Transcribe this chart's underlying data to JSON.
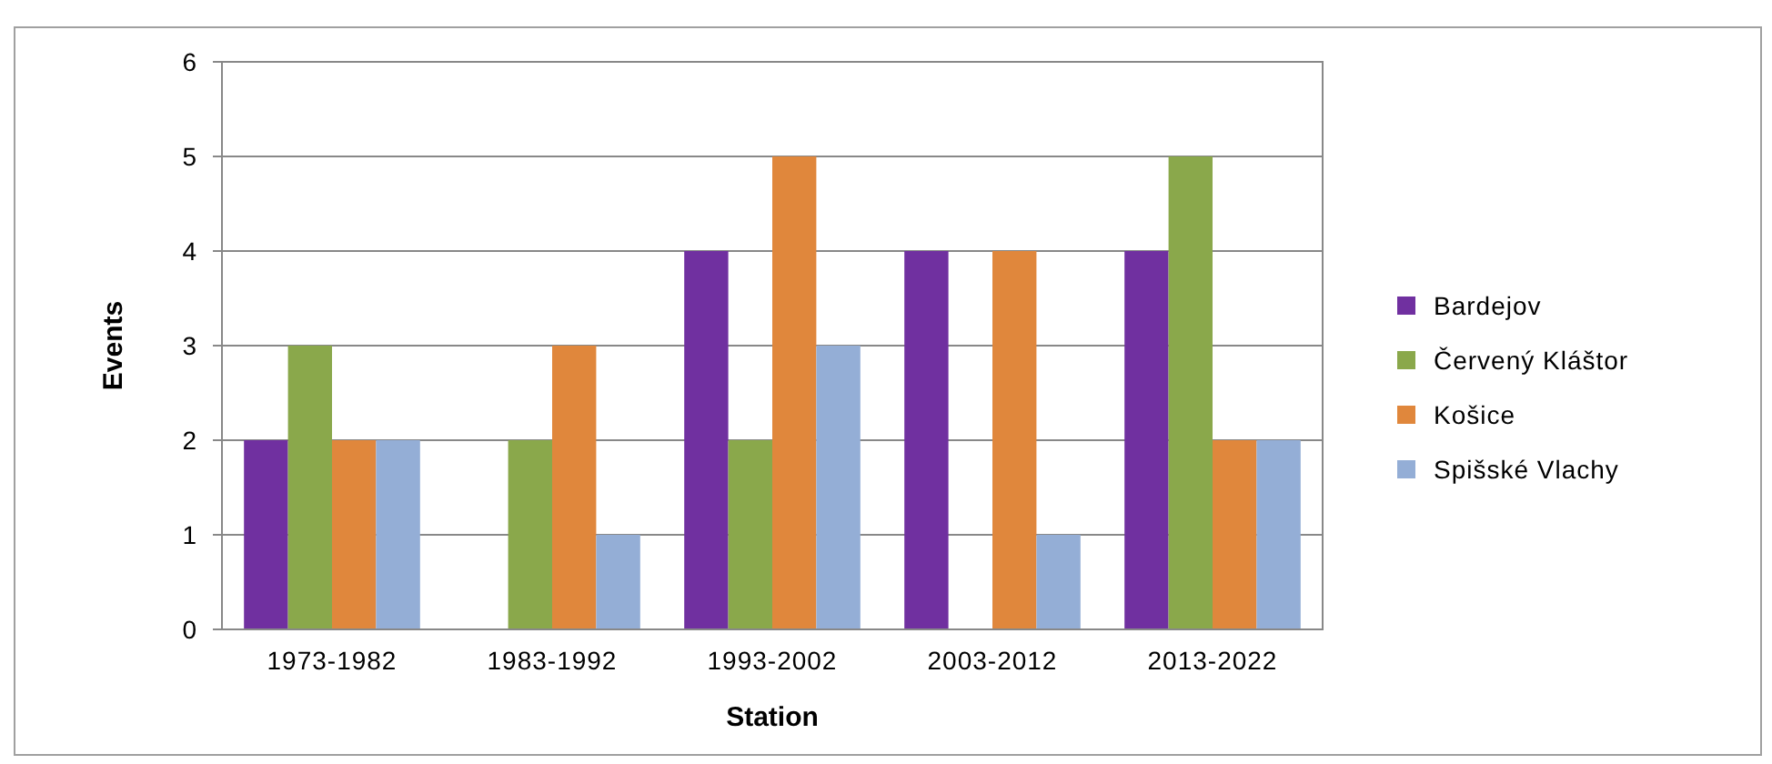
{
  "chart_data": {
    "type": "bar",
    "xlabel": "Station",
    "ylabel": "Events",
    "categories": [
      "1973-1982",
      "1983-1992",
      "1993-2002",
      "2003-2012",
      "2013-2022"
    ],
    "series": [
      {
        "name": "Bardejov",
        "color": "#7030a0",
        "values": [
          2,
          0,
          4,
          4,
          4
        ]
      },
      {
        "name": "Červený Kláštor",
        "color": "#8aa84b",
        "values": [
          3,
          2,
          2,
          0,
          5
        ]
      },
      {
        "name": "Košice",
        "color": "#e0873c",
        "values": [
          2,
          3,
          5,
          4,
          2
        ]
      },
      {
        "name": "Spišské Vlachy",
        "color": "#94aed6",
        "values": [
          2,
          1,
          3,
          1,
          2
        ]
      }
    ],
    "ylim": [
      0,
      6
    ],
    "yticks": [
      0,
      1,
      2,
      3,
      4,
      5,
      6
    ],
    "grid": "y",
    "legend": "right"
  }
}
